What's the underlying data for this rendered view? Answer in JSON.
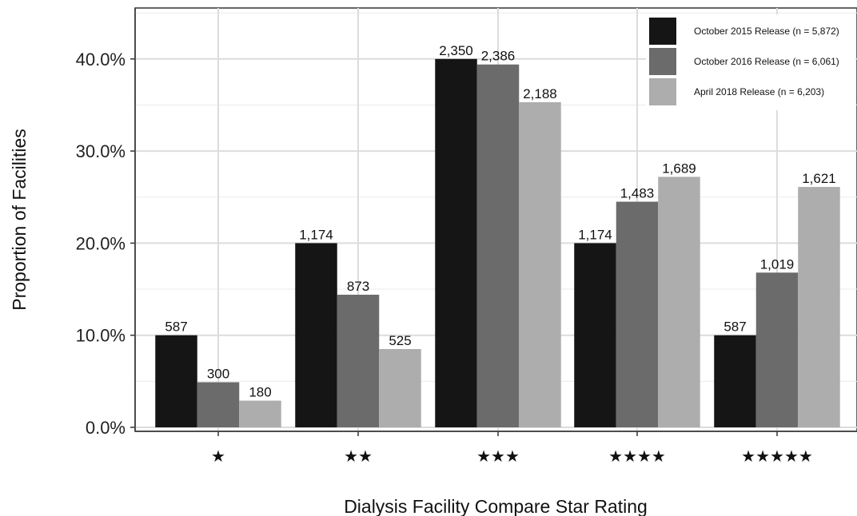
{
  "chart_data": {
    "type": "bar",
    "title": "",
    "xlabel": "Dialysis Facility Compare Star Rating",
    "ylabel": "Proportion of Facilities",
    "categories": [
      "★",
      "★★",
      "★★★",
      "★★★★",
      "★★★★★"
    ],
    "ylim": [
      0,
      44
    ],
    "yticks": [
      0,
      10,
      20,
      30,
      40
    ],
    "ytick_labels": [
      "0.0%",
      "10.0%",
      "20.0%",
      "30.0%",
      "40.0%"
    ],
    "y_unit": "percent",
    "grid": true,
    "legend_position": "top-right",
    "series": [
      {
        "name": "October 2015 Release (n = 5,872)",
        "color": "#151515",
        "values": [
          10.0,
          20.0,
          40.0,
          20.0,
          10.0
        ],
        "labels": [
          "587",
          "1,174",
          "2,350",
          "1,174",
          "587"
        ]
      },
      {
        "name": "October 2016 Release (n = 6,061)",
        "color": "#6b6b6b",
        "values": [
          4.9,
          14.4,
          39.4,
          24.5,
          16.8
        ],
        "labels": [
          "300",
          "873",
          "2,386",
          "1,483",
          "1,019"
        ]
      },
      {
        "name": "April 2018 Release (n = 6,203)",
        "color": "#adadad",
        "values": [
          2.9,
          8.5,
          35.3,
          27.2,
          26.1
        ],
        "labels": [
          "180",
          "525",
          "2,188",
          "1,689",
          "1,621"
        ]
      }
    ]
  }
}
